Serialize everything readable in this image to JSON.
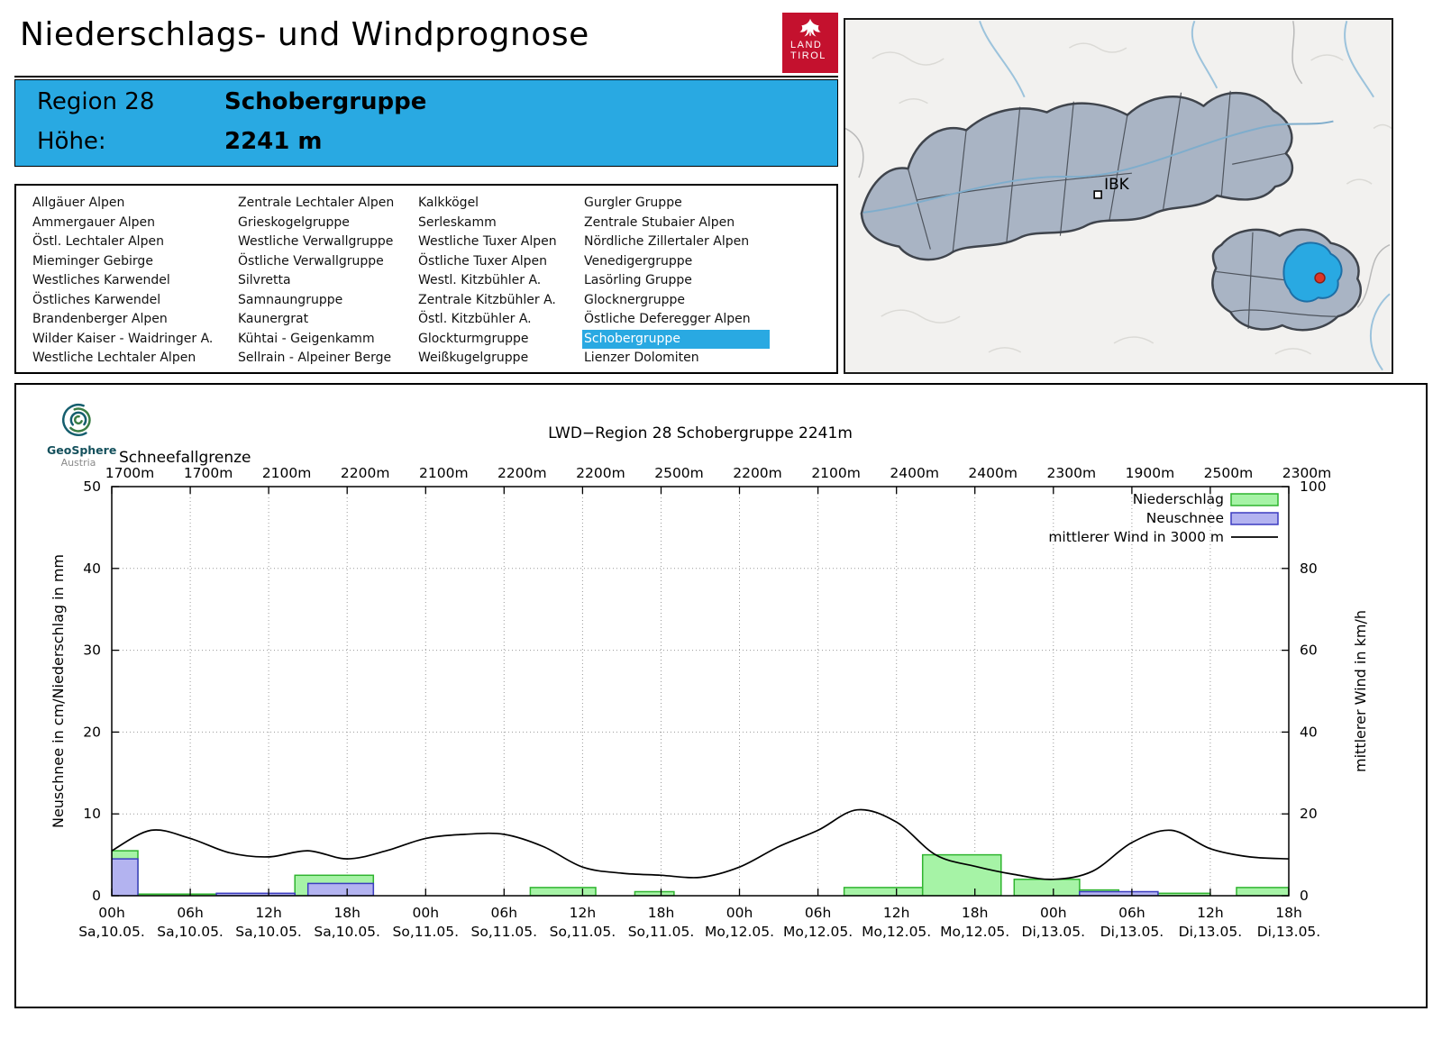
{
  "page": {
    "title": "Niederschlags- und Windprognose"
  },
  "land_tirol_logo": {
    "line1": "LAND",
    "line2": "TIROL"
  },
  "map": {
    "marker_label": "IBK"
  },
  "region_info": {
    "region_label": "Region 28",
    "region_name": "Schobergruppe",
    "altitude_label": "Höhe:",
    "altitude_value": "2241 m"
  },
  "region_list": {
    "selected": "Schobergruppe",
    "columns": [
      [
        "Allgäuer Alpen",
        "Ammergauer Alpen",
        "Östl. Lechtaler Alpen",
        "Mieminger Gebirge",
        "Westliches Karwendel",
        "Östliches Karwendel",
        "Brandenberger Alpen",
        "Wilder Kaiser - Waidringer A.",
        "Westliche Lechtaler Alpen"
      ],
      [
        "Zentrale Lechtaler Alpen",
        "Grieskogelgruppe",
        "Westliche Verwallgruppe",
        "Östliche Verwallgruppe",
        "Silvretta",
        "Samnaungruppe",
        "Kaunergrat",
        "Kühtai - Geigenkamm",
        "Sellrain - Alpeiner Berge"
      ],
      [
        "Kalkkögel",
        "Serleskamm",
        "Westliche Tuxer Alpen",
        "Östliche Tuxer Alpen",
        "Westl. Kitzbühler A.",
        "Zentrale Kitzbühler A.",
        "Östl. Kitzbühler A.",
        "Glockturmgruppe",
        "Weißkugelgruppe"
      ],
      [
        "Gurgler Gruppe",
        "Zentrale Stubaier Alpen",
        "Nördliche Zillertaler Alpen",
        "Venedigergruppe",
        "Lasörling Gruppe",
        "Glocknergruppe",
        "Östliche Deferegger Alpen",
        "Schobergruppe",
        "Lienzer Dolomiten"
      ]
    ]
  },
  "geosphere_logo": {
    "line1": "GeoSphere",
    "line2": "Austria"
  },
  "colors": {
    "accent_blue": "#29a9e2",
    "bar_green_fill": "#a6f3a6",
    "bar_green_border": "#2fb42f",
    "bar_blue_fill": "#b3b3f0",
    "bar_blue_border": "#3c3cc0",
    "wind_line": "#000000",
    "grid": "#999999",
    "map_region_fill": "#a9b4c4",
    "map_dot_red": "#dd3526"
  },
  "chart_data": {
    "type": "bar+line",
    "title": "LWD−Region 28 Schobergruppe 2241m",
    "snowline_label": "Schneefallgrenze",
    "snowline_values": [
      "1700m",
      "1700m",
      "2100m",
      "2200m",
      "2100m",
      "2200m",
      "2200m",
      "2500m",
      "2200m",
      "2100m",
      "2400m",
      "2400m",
      "2300m",
      "1900m",
      "2500m",
      "2300m"
    ],
    "ylabel_left": "Neuschnee in cm/Niederschlag in mm",
    "ylabel_right": "mittlerer Wind in km/h",
    "ylim_left": [
      0,
      50
    ],
    "ylim_right": [
      0,
      100
    ],
    "yticks_left": [
      0,
      10,
      20,
      30,
      40,
      50
    ],
    "yticks_right": [
      0,
      20,
      40,
      60,
      80,
      100
    ],
    "x_hours_range": [
      0,
      90
    ],
    "x_ticks": [
      {
        "hour": 0,
        "time": "00h",
        "date": "Sa,10.05."
      },
      {
        "hour": 6,
        "time": "06h",
        "date": "Sa,10.05."
      },
      {
        "hour": 12,
        "time": "12h",
        "date": "Sa,10.05."
      },
      {
        "hour": 18,
        "time": "18h",
        "date": "Sa,10.05."
      },
      {
        "hour": 24,
        "time": "00h",
        "date": "So,11.05."
      },
      {
        "hour": 30,
        "time": "06h",
        "date": "So,11.05."
      },
      {
        "hour": 36,
        "time": "12h",
        "date": "So,11.05."
      },
      {
        "hour": 42,
        "time": "18h",
        "date": "So,11.05."
      },
      {
        "hour": 48,
        "time": "00h",
        "date": "Mo,12.05."
      },
      {
        "hour": 54,
        "time": "06h",
        "date": "Mo,12.05."
      },
      {
        "hour": 60,
        "time": "12h",
        "date": "Mo,12.05."
      },
      {
        "hour": 66,
        "time": "18h",
        "date": "Mo,12.05."
      },
      {
        "hour": 72,
        "time": "00h",
        "date": "Di,13.05."
      },
      {
        "hour": 78,
        "time": "06h",
        "date": "Di,13.05."
      },
      {
        "hour": 84,
        "time": "12h",
        "date": "Di,13.05."
      },
      {
        "hour": 90,
        "time": "18h",
        "date": "Di,13.05."
      }
    ],
    "legend": [
      {
        "label": "Niederschlag",
        "type": "box",
        "fill": "#a6f3a6",
        "stroke": "#2fb42f"
      },
      {
        "label": "Neuschnee",
        "type": "box",
        "fill": "#b3b3f0",
        "stroke": "#3c3cc0"
      },
      {
        "label": "mittlerer Wind in 3000 m",
        "type": "line",
        "stroke": "#000000"
      }
    ],
    "series": {
      "niederschlag_mm": {
        "unit": "mm",
        "bars": [
          {
            "start": 0,
            "end": 2,
            "value": 5.5
          },
          {
            "start": 2,
            "end": 8,
            "value": 0.2
          },
          {
            "start": 14,
            "end": 20,
            "value": 2.5
          },
          {
            "start": 32,
            "end": 37,
            "value": 1.0
          },
          {
            "start": 40,
            "end": 43,
            "value": 0.5
          },
          {
            "start": 56,
            "end": 62,
            "value": 1.0
          },
          {
            "start": 62,
            "end": 68,
            "value": 5.0
          },
          {
            "start": 69,
            "end": 74,
            "value": 2.0
          },
          {
            "start": 74,
            "end": 77,
            "value": 0.7
          },
          {
            "start": 80,
            "end": 84,
            "value": 0.3
          },
          {
            "start": 86,
            "end": 90,
            "value": 1.0
          }
        ]
      },
      "neuschnee_cm": {
        "unit": "cm",
        "bars": [
          {
            "start": 0,
            "end": 2,
            "value": 4.5
          },
          {
            "start": 8,
            "end": 14,
            "value": 0.3
          },
          {
            "start": 15,
            "end": 20,
            "value": 1.5
          },
          {
            "start": 74,
            "end": 80,
            "value": 0.5
          }
        ]
      },
      "wind_kmh": {
        "unit": "km/h",
        "axis": "right",
        "x_hours": [
          0,
          3,
          6,
          9,
          12,
          15,
          18,
          21,
          24,
          27,
          30,
          33,
          36,
          39,
          42,
          45,
          48,
          51,
          54,
          57,
          60,
          63,
          66,
          69,
          72,
          75,
          78,
          81,
          84,
          87,
          90
        ],
        "values": [
          11,
          16,
          14,
          10.5,
          9.5,
          11,
          9,
          11,
          14,
          15,
          15,
          12,
          7,
          5.5,
          5,
          4.5,
          7,
          12,
          16,
          21,
          18,
          10,
          7.2,
          5.2,
          4,
          6,
          13,
          16,
          11.5,
          9.5,
          9
        ]
      }
    }
  }
}
